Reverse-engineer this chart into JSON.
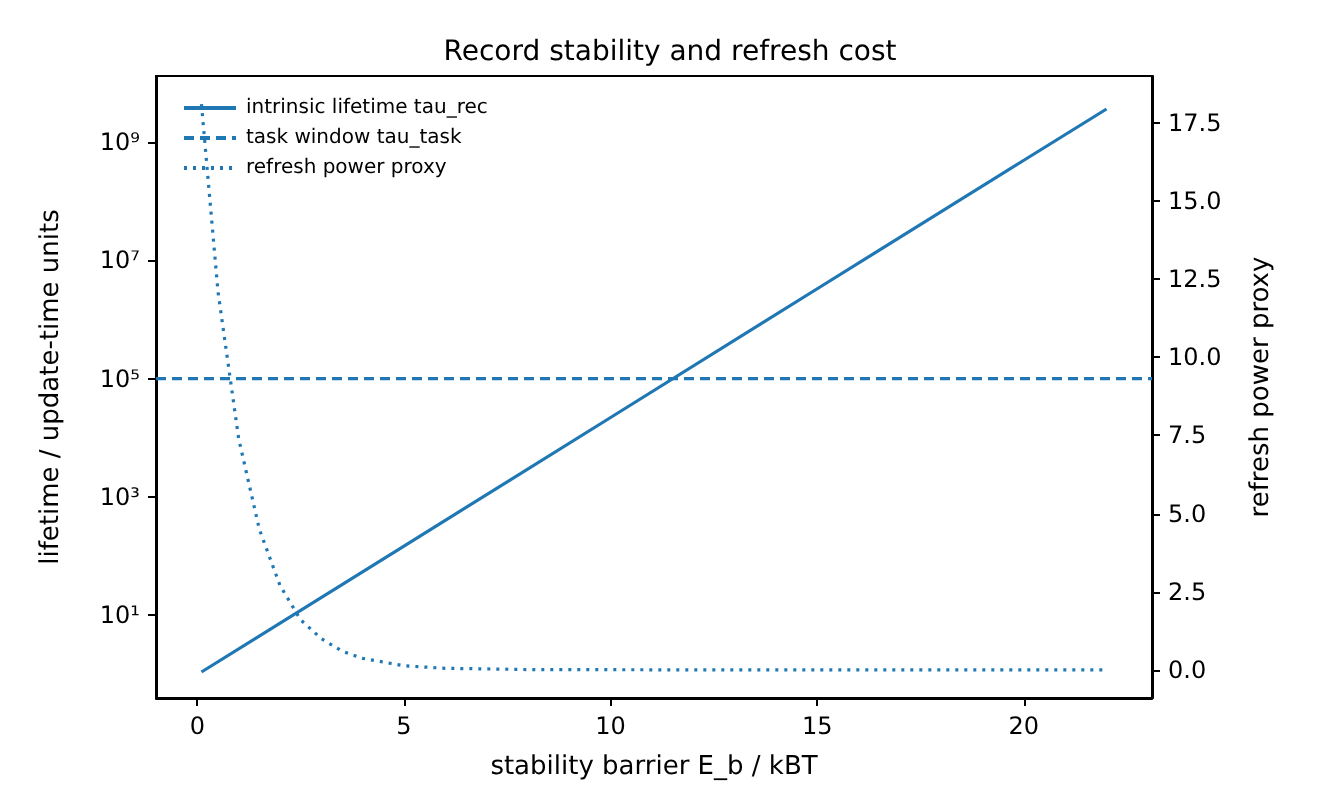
{
  "chart_data": {
    "type": "line",
    "title": "Record stability and refresh cost",
    "xlabel": "stability barrier E_b / kBT",
    "ylabel": "lifetime / update-time units",
    "y2label": "refresh power proxy",
    "log": "y",
    "grid": false,
    "legend": "top left",
    "marker": "none",
    "xlim": [
      -1,
      23.1
    ],
    "xticks": [
      0,
      5,
      10,
      15,
      20
    ],
    "ylim": [
      0.4,
      13000000000
    ],
    "yticks": [
      {
        "value": 10,
        "label": "10¹"
      },
      {
        "value": 1000,
        "label": "10³"
      },
      {
        "value": 100000,
        "label": "10⁵"
      },
      {
        "value": 10000000,
        "label": "10⁷"
      },
      {
        "value": 1000000000,
        "label": "10⁹"
      }
    ],
    "y2lim": [
      -0.9,
      19
    ],
    "y2ticks": [
      {
        "value": 0,
        "label": "0.0"
      },
      2.5,
      {
        "value": 5,
        "label": "5.0"
      },
      7.5,
      {
        "value": 10,
        "label": "10.0"
      },
      12.5,
      {
        "value": 15,
        "label": "15.0"
      },
      17.5
    ],
    "series": [
      {
        "name": "intrinsic lifetime tau_rec",
        "color": "#1f77b4",
        "line_style": "solid",
        "x": [
          0.1,
          5,
          10,
          15,
          20,
          22
        ],
        "values": [
          1.1,
          148,
          22000,
          3300000,
          490000000,
          3600000000
        ]
      },
      {
        "name": "task window tau_task",
        "color": "#1f77b4",
        "line_style": "dashed",
        "x": [
          -1,
          23.1
        ],
        "values": [
          100000,
          100000
        ]
      },
      {
        "name": "refresh power proxy",
        "color": "#1f77b4",
        "line_style": "dotted",
        "axis": "y2",
        "x": [
          0.1,
          0.5,
          1,
          1.5,
          2,
          2.5,
          3,
          3.5,
          4,
          5,
          6,
          8,
          12,
          16,
          22
        ],
        "values": [
          18.1,
          12.1,
          7.4,
          4.5,
          2.7,
          1.6,
          1.0,
          0.6,
          0.37,
          0.13,
          0.05,
          0.01,
          0,
          0,
          0
        ]
      }
    ]
  }
}
